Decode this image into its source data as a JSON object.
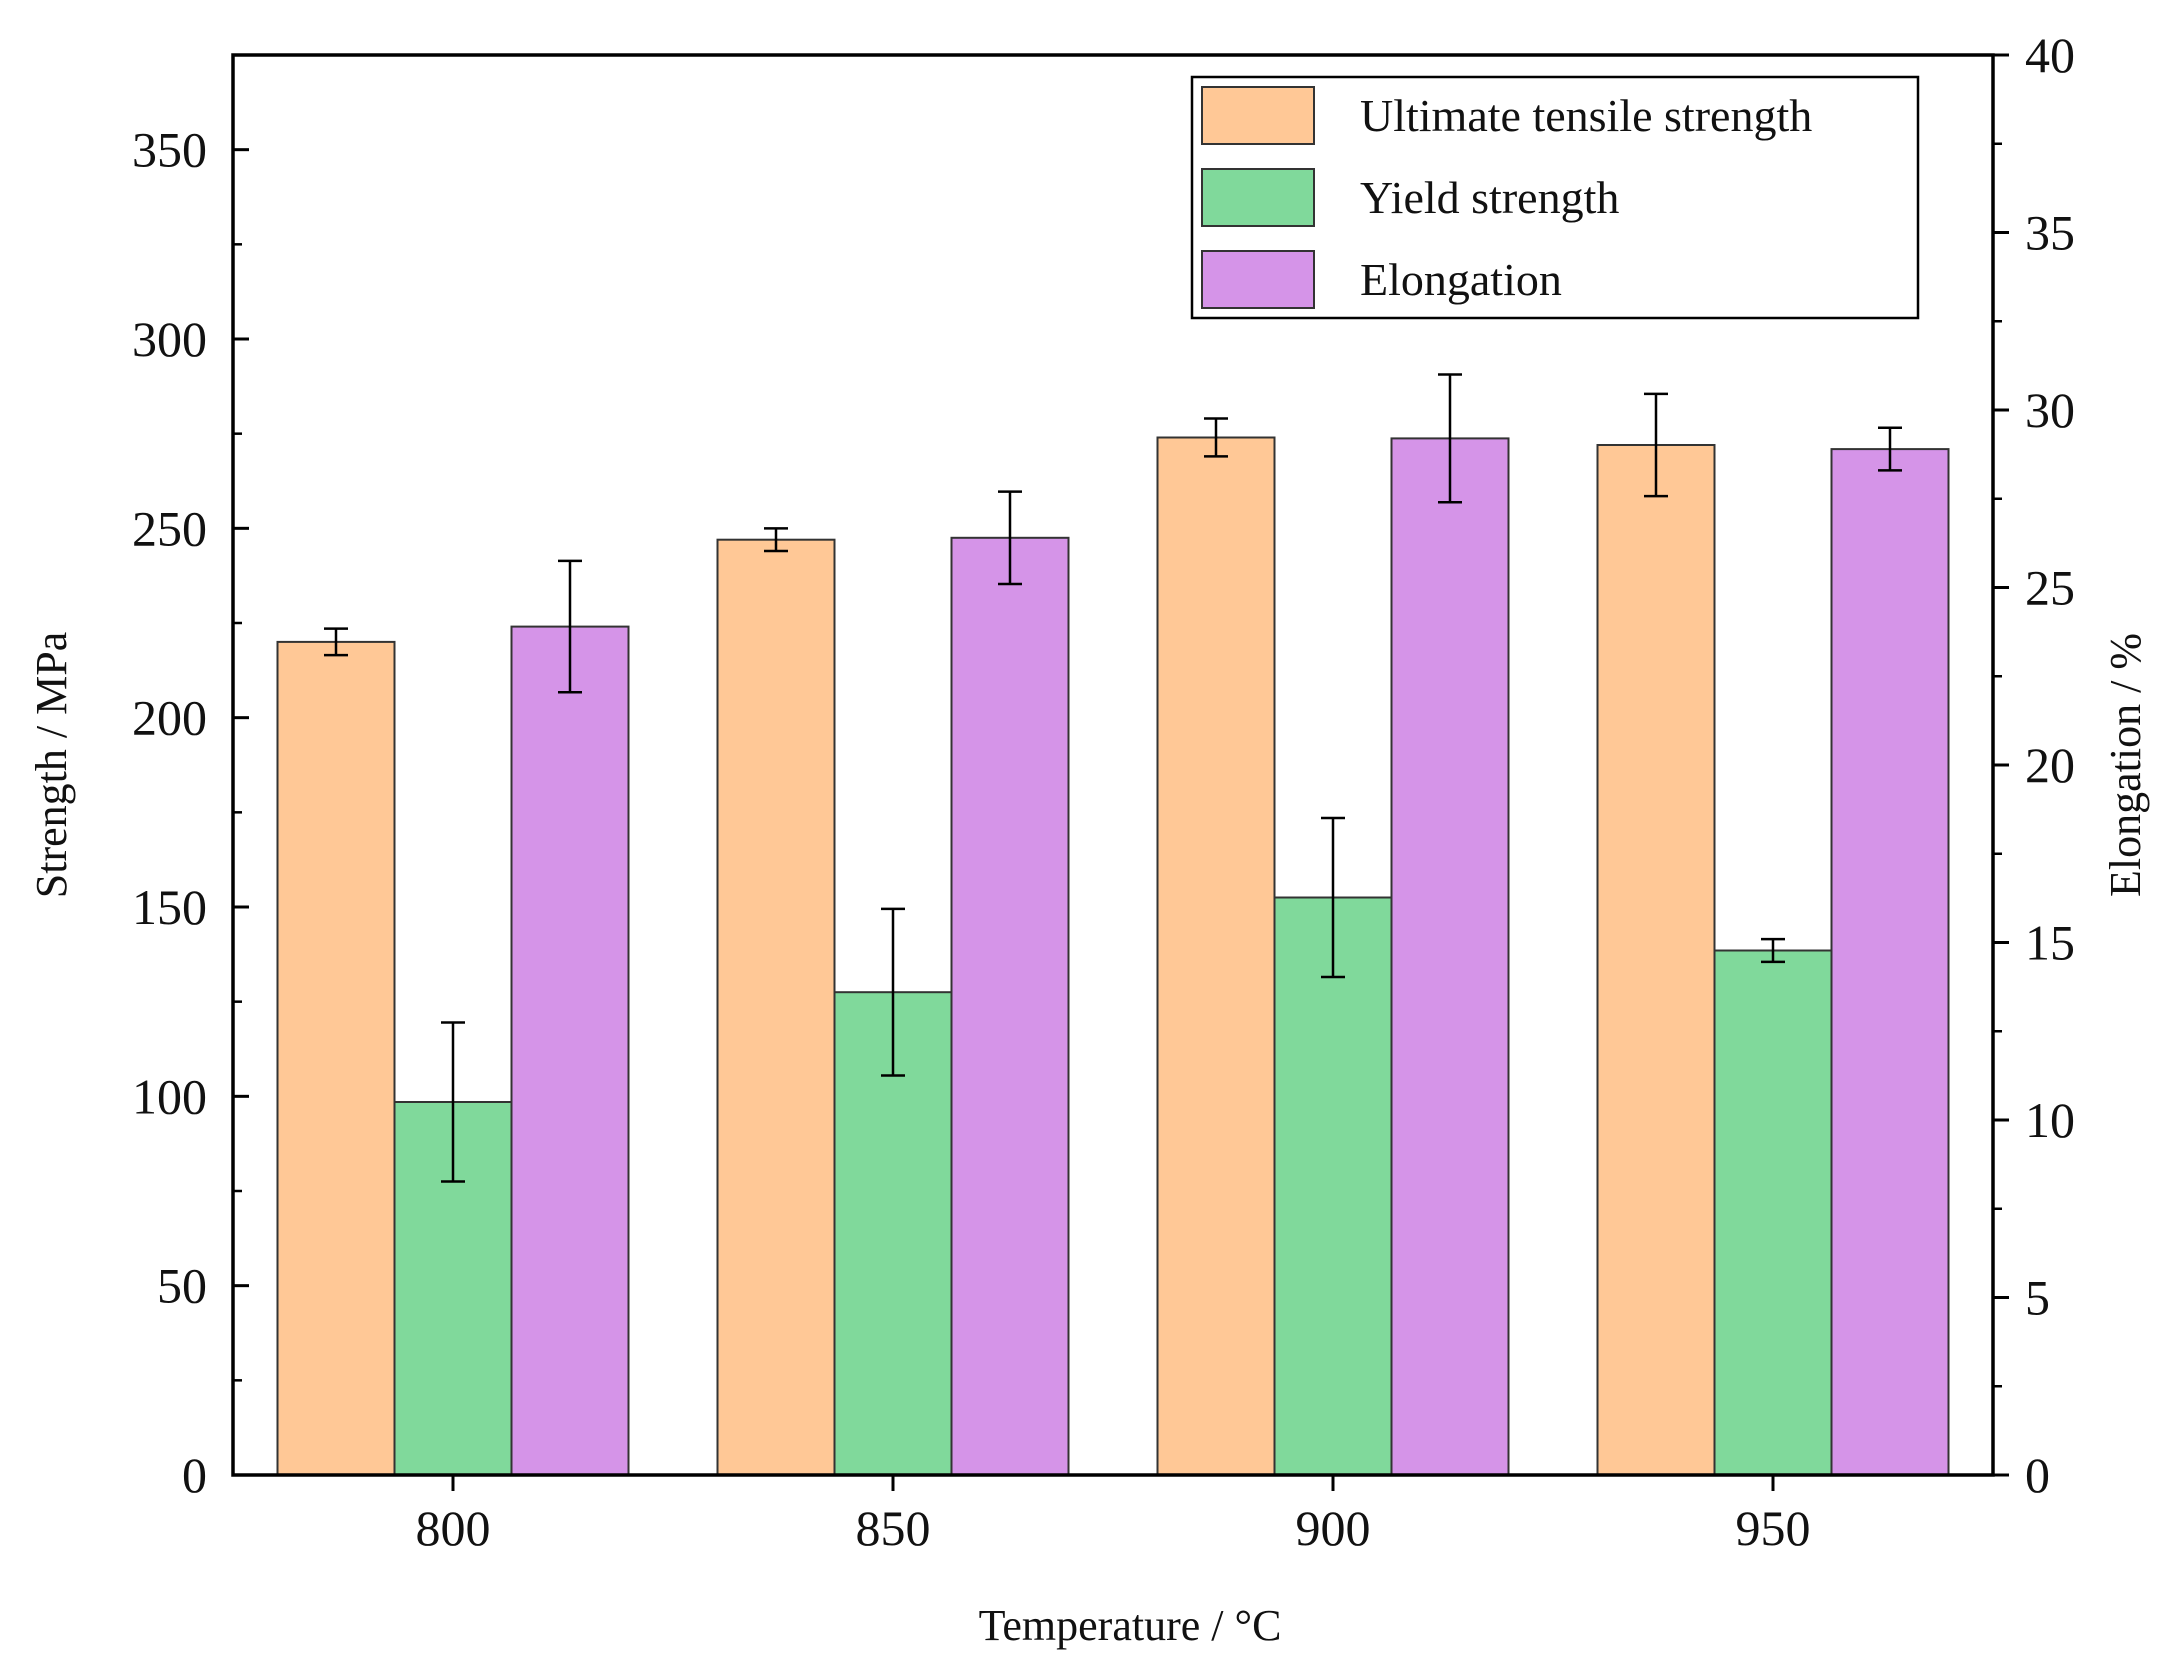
{
  "chart_data": {
    "type": "bar",
    "title": "",
    "xlabel": "Temperature / °C",
    "ylabel": "Strength / MPa",
    "y2label": "Elongation / %",
    "categories": [
      "800",
      "850",
      "900",
      "950"
    ],
    "ylim": [
      0,
      375
    ],
    "y2lim": [
      0,
      40
    ],
    "yticks": [
      0,
      50,
      100,
      150,
      200,
      250,
      300,
      350
    ],
    "y2ticks": [
      0,
      5,
      10,
      15,
      20,
      25,
      30,
      35,
      40
    ],
    "ytick_labels": [
      "0",
      "50",
      "100",
      "150",
      "200",
      "250",
      "300",
      "350"
    ],
    "y2tick_labels": [
      "0",
      "5",
      "10",
      "15",
      "20",
      "25",
      "30",
      "35",
      "40"
    ],
    "legend_position": "top-right",
    "grid": false,
    "series": [
      {
        "name": "Ultimate tensile strength",
        "axis": "left",
        "color": "#FFC896",
        "values": [
          220,
          247,
          274,
          272
        ],
        "errors": [
          3.5,
          3,
          5,
          13.5
        ]
      },
      {
        "name": "Yield strength",
        "axis": "left",
        "color": "#80D99B",
        "values": [
          98.5,
          127.5,
          152.5,
          138.5
        ],
        "errors": [
          21,
          22,
          21,
          3
        ]
      },
      {
        "name": "Elongation",
        "axis": "right",
        "color": "#D594E8",
        "values": [
          23.9,
          26.4,
          29.2,
          28.9
        ],
        "errors": [
          1.85,
          1.3,
          1.8,
          0.6
        ]
      }
    ]
  }
}
